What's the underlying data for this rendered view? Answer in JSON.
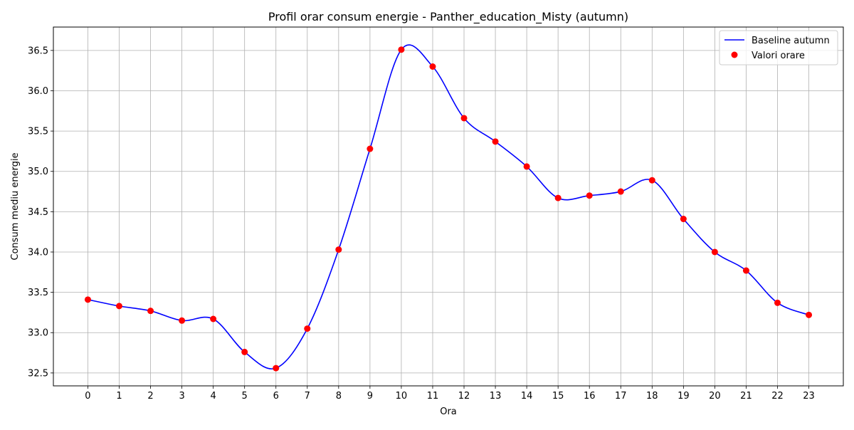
{
  "chart_data": {
    "type": "line",
    "title": "Profil orar consum energie - Panther_education_Misty (autumn)",
    "xlabel": "Ora",
    "ylabel": "Consum mediu energie",
    "xlim": [
      -1.1,
      24.1
    ],
    "ylim": [
      32.34,
      36.79
    ],
    "x_ticks": [
      0,
      1,
      2,
      3,
      4,
      5,
      6,
      7,
      8,
      9,
      10,
      11,
      12,
      13,
      14,
      15,
      16,
      17,
      18,
      19,
      20,
      21,
      22,
      23
    ],
    "y_ticks": [
      32.5,
      33.0,
      33.5,
      34.0,
      34.5,
      35.0,
      35.5,
      36.0,
      36.5
    ],
    "y_tick_labels": [
      "32.5",
      "33.0",
      "33.5",
      "34.0",
      "34.5",
      "35.0",
      "35.5",
      "36.0",
      "36.5"
    ],
    "grid": true,
    "legend_position": "top-right",
    "series": [
      {
        "name": "Baseline autumn",
        "kind": "line",
        "color": "#0000ff",
        "x": [
          0,
          1,
          2,
          3,
          4,
          5,
          6,
          7,
          8,
          9,
          10,
          11,
          12,
          13,
          14,
          15,
          16,
          17,
          18,
          19,
          20,
          21,
          22,
          23
        ],
        "values": [
          33.41,
          33.33,
          33.27,
          33.15,
          33.17,
          32.76,
          32.56,
          33.05,
          34.03,
          35.28,
          36.51,
          36.3,
          35.66,
          35.37,
          35.06,
          34.67,
          34.7,
          34.75,
          34.89,
          34.41,
          34.0,
          33.77,
          33.37,
          33.22
        ]
      },
      {
        "name": "Valori orare",
        "kind": "scatter",
        "color": "#ff0000",
        "x": [
          0,
          1,
          2,
          3,
          4,
          5,
          6,
          7,
          8,
          9,
          10,
          11,
          12,
          13,
          14,
          15,
          16,
          17,
          18,
          19,
          20,
          21,
          22,
          23
        ],
        "values": [
          33.41,
          33.33,
          33.27,
          33.15,
          33.17,
          32.76,
          32.56,
          33.05,
          34.03,
          35.28,
          36.51,
          36.3,
          35.66,
          35.37,
          35.06,
          34.67,
          34.7,
          34.75,
          34.89,
          34.41,
          34.0,
          33.77,
          33.37,
          33.22
        ]
      }
    ]
  }
}
